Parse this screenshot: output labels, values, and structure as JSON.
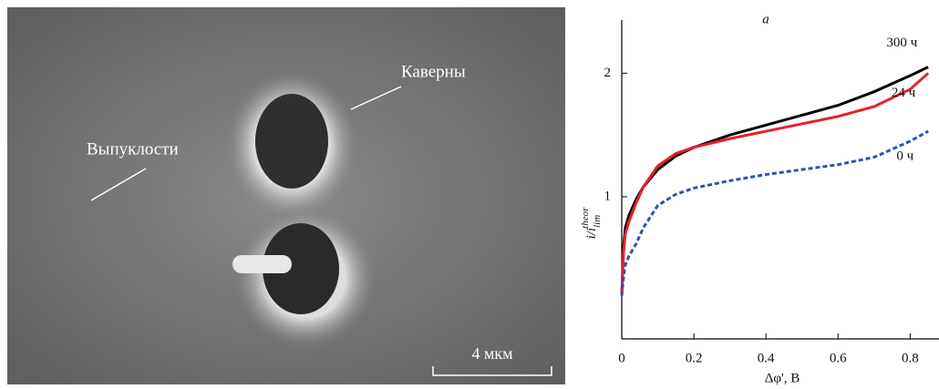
{
  "image": {
    "labels": [
      "Каверны",
      "Выпуклости"
    ],
    "scale_bar": "4 мкм"
  },
  "chart_data": {
    "type": "line",
    "title": "a",
    "x_label": "Δφ', В",
    "y_label": {
      "main": "i/i",
      "sub": "lim",
      "sup": "theor"
    },
    "x": [
      0,
      0.005,
      0.01,
      0.02,
      0.04,
      0.06,
      0.1,
      0.15,
      0.2,
      0.3,
      0.4,
      0.5,
      0.6,
      0.7,
      0.8,
      0.85
    ],
    "series": [
      {
        "name": "300 ч",
        "color": "#000000",
        "values": [
          0.2,
          0.6,
          0.75,
          0.85,
          0.98,
          1.08,
          1.22,
          1.33,
          1.4,
          1.5,
          1.58,
          1.66,
          1.74,
          1.85,
          1.98,
          2.05
        ]
      },
      {
        "name": "24 ч",
        "color": "#e8202a",
        "values": [
          0.2,
          0.55,
          0.7,
          0.8,
          0.95,
          1.08,
          1.25,
          1.35,
          1.4,
          1.47,
          1.53,
          1.59,
          1.65,
          1.73,
          1.87,
          2.0
        ]
      },
      {
        "name": "0 ч",
        "color": "#3050b8",
        "dashed": true,
        "values": [
          0.2,
          0.35,
          0.45,
          0.52,
          0.62,
          0.75,
          0.93,
          1.02,
          1.07,
          1.13,
          1.18,
          1.22,
          1.26,
          1.32,
          1.45,
          1.53
        ]
      }
    ],
    "xlim": [
      0,
      0.88
    ],
    "ylim": [
      -0.15,
      2.43
    ],
    "xticks": [
      0,
      0.2,
      0.4,
      0.6,
      0.8
    ],
    "yticks": [
      1,
      2
    ]
  }
}
